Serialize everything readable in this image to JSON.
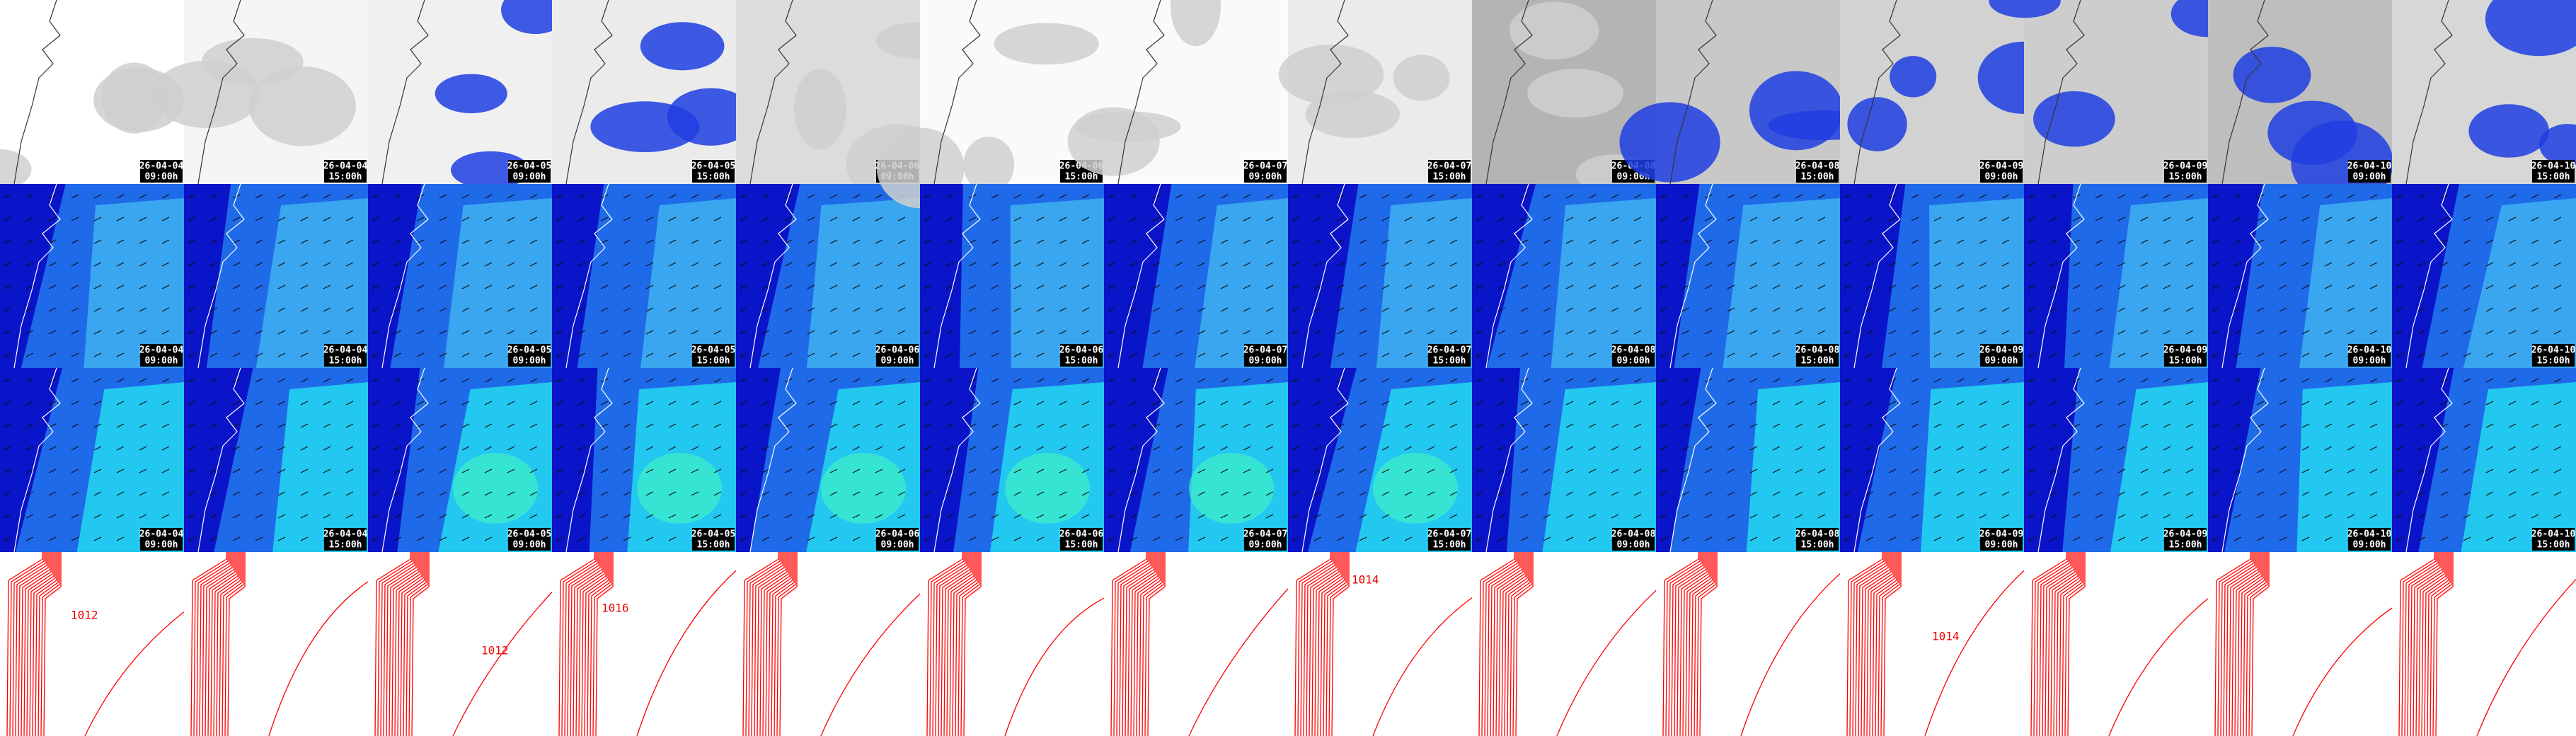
{
  "columns": [
    {
      "date": "26-04-04",
      "time": "09:00h"
    },
    {
      "date": "26-04-04",
      "time": "15:00h"
    },
    {
      "date": "26-04-05",
      "time": "09:00h"
    },
    {
      "date": "26-04-05",
      "time": "15:00h"
    },
    {
      "date": "26-04-06",
      "time": "09:00h"
    },
    {
      "date": "26-04-06",
      "time": "15:00h"
    },
    {
      "date": "26-04-07",
      "time": "09:00h"
    },
    {
      "date": "26-04-07",
      "time": "15:00h"
    },
    {
      "date": "26-04-08",
      "time": "09:00h"
    },
    {
      "date": "26-04-08",
      "time": "15:00h"
    },
    {
      "date": "26-04-09",
      "time": "09:00h"
    },
    {
      "date": "26-04-09",
      "time": "15:00h"
    },
    {
      "date": "26-04-10",
      "time": "09:00h"
    },
    {
      "date": "26-04-10",
      "time": "15:00h"
    }
  ],
  "isobar_labels": [
    {
      "column": 0,
      "text": "1012"
    },
    {
      "column": 2,
      "text": "1012"
    },
    {
      "column": 3,
      "text": "1016"
    },
    {
      "column": 7,
      "text": "1014"
    },
    {
      "column": 10,
      "text": "1014"
    }
  ]
}
